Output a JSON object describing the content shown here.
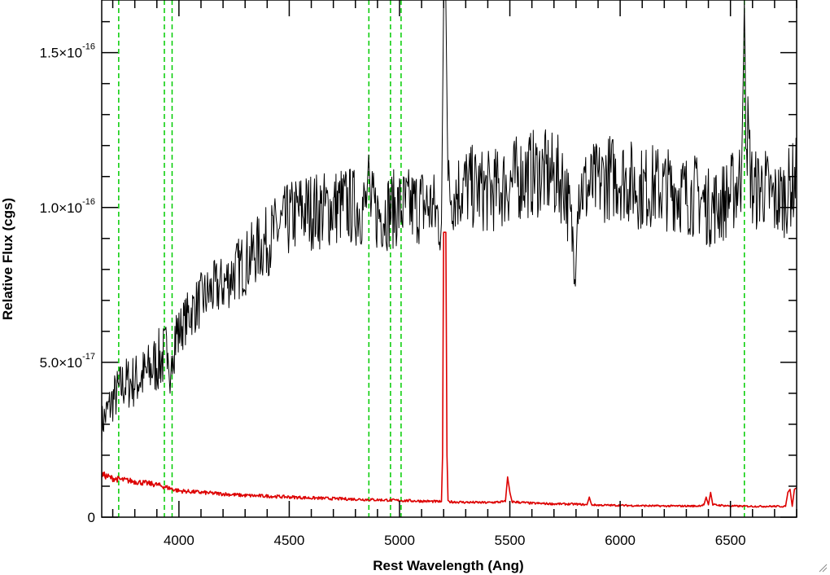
{
  "chart_data": {
    "type": "line",
    "title": "",
    "xlabel": "Rest Wavelength (Ang)",
    "ylabel": "Relative Flux (cgs)",
    "xlim": [
      3650,
      6800
    ],
    "ylim": [
      0,
      1.67e-16
    ],
    "x_ticks": [
      4000,
      4500,
      5000,
      5500,
      6000,
      6500
    ],
    "x_tick_labels": [
      "4000",
      "4500",
      "5000",
      "5500",
      "6000",
      "6500"
    ],
    "y_ticks": [
      {
        "value": 0,
        "mantissa": "0",
        "exponent": ""
      },
      {
        "value": 5e-17,
        "mantissa": "5.0×10",
        "exponent": "-17"
      },
      {
        "value": 1e-16,
        "mantissa": "1.0×10",
        "exponent": "-16"
      },
      {
        "value": 1.5e-16,
        "mantissa": "1.5×10",
        "exponent": "-16"
      }
    ],
    "grid": false,
    "reference_lines": {
      "color": "#00cc00",
      "style": "dashed",
      "x": [
        3727,
        3934,
        3969,
        4861,
        4959,
        5007,
        6563
      ]
    },
    "series": [
      {
        "color": "#000000",
        "x": [
          3650,
          3700,
          3750,
          3800,
          3850,
          3900,
          3950,
          3960,
          3970,
          4000,
          4050,
          4100,
          4150,
          4200,
          4250,
          4300,
          4350,
          4400,
          4450,
          4500,
          4550,
          4600,
          4650,
          4700,
          4750,
          4800,
          4850,
          4860,
          4870,
          4900,
          4950,
          5000,
          5050,
          5100,
          5150,
          5190,
          5200,
          5210,
          5220,
          5250,
          5300,
          5350,
          5400,
          5450,
          5500,
          5550,
          5600,
          5650,
          5700,
          5750,
          5800,
          5810,
          5850,
          5900,
          5950,
          6000,
          6050,
          6100,
          6150,
          6200,
          6250,
          6300,
          6350,
          6400,
          6450,
          6500,
          6550,
          6560,
          6563,
          6570,
          6600,
          6650,
          6700,
          6750,
          6800
        ],
        "y": [
          3e-17,
          3.8e-17,
          4.3e-17,
          4.4e-17,
          4.6e-17,
          5e-17,
          5.3e-17,
          4e-17,
          5.8e-17,
          6e-17,
          6.6e-17,
          7e-17,
          7.3e-17,
          7.5e-17,
          7.9e-17,
          8.2e-17,
          8.6e-17,
          8.9e-17,
          9.3e-17,
          9.6e-17,
          9.9e-17,
          9.9e-17,
          9.9e-17,
          1e-16,
          1.01e-16,
          1e-16,
          1e-16,
          1.17e-16,
          1e-16,
          9.8e-17,
          9.9e-17,
          1e-16,
          1e-16,
          1.01e-16,
          1e-16,
          9.5e-17,
          1.67e-16,
          1.67e-16,
          1.05e-16,
          1.05e-16,
          1.07e-16,
          1.06e-16,
          1.05e-16,
          1.06e-16,
          1.08e-16,
          1.1e-16,
          1.11e-16,
          1.11e-16,
          1.1e-16,
          1.08e-16,
          8.2e-17,
          1.07e-16,
          1.06e-16,
          1.08e-16,
          1.1e-16,
          1.1e-16,
          1.08e-16,
          1.06e-16,
          1.07e-16,
          1.06e-16,
          1.06e-16,
          1.04e-16,
          1.04e-16,
          1e-16,
          1.01e-16,
          1.04e-16,
          1.1e-16,
          1.5e-16,
          1.67e-16,
          1.3e-16,
          1.05e-16,
          1.07e-16,
          1.02e-16,
          1.04e-16,
          1.1e-16
        ]
      },
      {
        "color": "#dd0000",
        "x": [
          3650,
          3700,
          3750,
          3800,
          3850,
          3900,
          3950,
          4000,
          4100,
          4200,
          4300,
          4400,
          4500,
          4600,
          4700,
          4800,
          4900,
          5000,
          5100,
          5190,
          5195,
          5200,
          5210,
          5215,
          5220,
          5300,
          5400,
          5480,
          5490,
          5500,
          5510,
          5600,
          5700,
          5800,
          5850,
          5860,
          5870,
          5900,
          6000,
          6100,
          6200,
          6300,
          6350,
          6380,
          6390,
          6400,
          6410,
          6420,
          6500,
          6600,
          6700,
          6750,
          6760,
          6770,
          6780,
          6790,
          6800
        ],
        "y": [
          1.38e-17,
          1.25e-17,
          1.2e-17,
          1.15e-17,
          1.1e-17,
          1.05e-17,
          9.5e-18,
          8.5e-18,
          8e-18,
          7.5e-18,
          7e-18,
          6.8e-18,
          6.5e-18,
          6.2e-18,
          6e-18,
          5.8e-18,
          5.6e-18,
          5.4e-18,
          5.2e-18,
          5e-18,
          2e-17,
          9.2e-17,
          9.2e-17,
          2e-17,
          5e-18,
          4.8e-18,
          4.7e-18,
          5e-18,
          1.3e-17,
          8e-18,
          5e-18,
          4.5e-18,
          4.3e-18,
          4.2e-18,
          4e-18,
          6.5e-18,
          4e-18,
          3.9e-18,
          3.8e-18,
          3.7e-18,
          3.6e-18,
          3.6e-18,
          3.6e-18,
          4e-18,
          6.5e-18,
          4e-18,
          8e-18,
          4e-18,
          3.6e-18,
          3.5e-18,
          3.5e-18,
          3.5e-18,
          8e-18,
          9e-18,
          3.5e-18,
          9e-18,
          9.5e-18
        ]
      }
    ]
  }
}
